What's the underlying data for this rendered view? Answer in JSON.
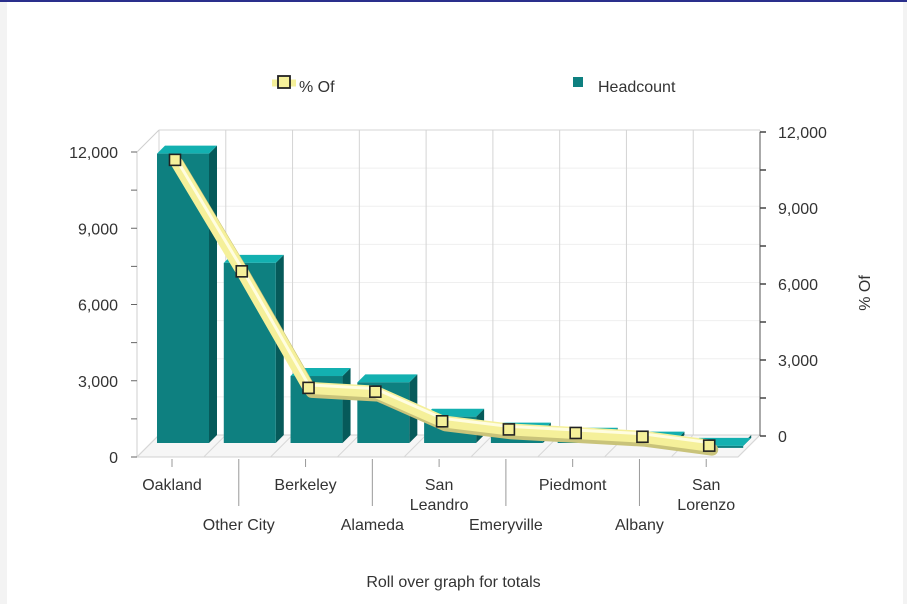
{
  "chart_data": {
    "type": "bar",
    "categories": [
      "Oakland",
      "Other City",
      "Berkeley",
      "Alameda",
      "San Leandro",
      "Emeryville",
      "Piedmont",
      "Albany",
      "San Lorenzo"
    ],
    "category_labels": [
      [
        "Oakland"
      ],
      [
        "Other City"
      ],
      [
        "Berkeley"
      ],
      [
        "Alameda"
      ],
      [
        "San",
        "Leandro"
      ],
      [
        "Emeryville"
      ],
      [
        "Piedmont"
      ],
      [
        "Albany"
      ],
      [
        "San",
        "Lorenzo"
      ]
    ],
    "series": [
      {
        "name": "Headcount",
        "type": "bar",
        "axis": "left",
        "color": "#0e8080",
        "values": [
          11700,
          7400,
          2950,
          2700,
          1350,
          800,
          600,
          450,
          200
        ]
      },
      {
        "name": "% Of",
        "type": "line",
        "axis": "right",
        "color": "#f5f09a",
        "marker_color": "#222222",
        "values": [
          10900,
          6500,
          1900,
          1750,
          580,
          260,
          120,
          -30,
          -380
        ]
      }
    ],
    "y_left": {
      "ylim": [
        0,
        12000
      ],
      "ticks": [
        "0",
        "3,000",
        "6,000",
        "9,000",
        "12,000"
      ]
    },
    "y_right": {
      "label": "% Of",
      "ylim": [
        0,
        12000
      ],
      "ticks": [
        "0",
        "3,000",
        "6,000",
        "9,000",
        "12,000"
      ]
    },
    "grid": true,
    "legend_position": "top"
  },
  "footer": {
    "note": "Roll over graph for totals"
  }
}
